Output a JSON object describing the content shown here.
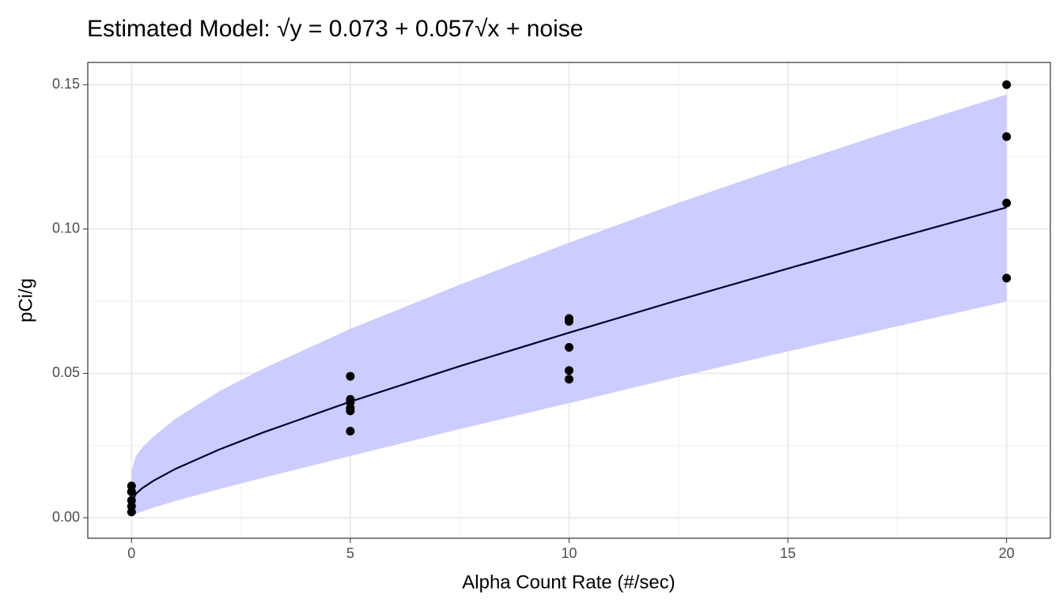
{
  "chart_data": {
    "type": "scatter",
    "title": "Estimated Model: √y = 0.073 + 0.057√x + noise",
    "x_label": "Alpha Count Rate (#/sec)",
    "y_label": "pCi/g",
    "xlim": [
      -1,
      21
    ],
    "ylim": [
      -0.0071,
      0.1577
    ],
    "xticks": [
      0,
      5,
      10,
      15,
      20
    ],
    "yticks": [
      {
        "value": 0,
        "label": "0.00"
      },
      {
        "value": 0.05,
        "label": "0.05"
      },
      {
        "value": 0.1,
        "label": "0.10"
      },
      {
        "value": 0.15,
        "label": "0.15"
      }
    ],
    "x_minor_grid": [
      2.5,
      7.5,
      12.5,
      17.5
    ],
    "y_minor_grid": [
      0.025,
      0.075,
      0.125
    ],
    "grid": true,
    "series": [
      {
        "name": "observed",
        "color": "#000000",
        "x": [
          0,
          0,
          0,
          0,
          0,
          0,
          5,
          5,
          5,
          5,
          5,
          5,
          10,
          10,
          10,
          10,
          10,
          20,
          20,
          20,
          20
        ],
        "values": [
          0.011,
          0.009,
          0.009,
          0.006,
          0.004,
          0.002,
          0.049,
          0.041,
          0.04,
          0.038,
          0.037,
          0.03,
          0.069,
          0.068,
          0.059,
          0.051,
          0.048,
          0.15,
          0.132,
          0.109,
          0.083
        ]
      }
    ],
    "fit": {
      "color": "#000033",
      "x": [
        0,
        0.1,
        0.25,
        0.5,
        1,
        2,
        3,
        5,
        7.5,
        10,
        12.5,
        15,
        17.5,
        20
      ],
      "values": [
        0.0053,
        0.0083,
        0.0103,
        0.0128,
        0.0169,
        0.0236,
        0.0295,
        0.0402,
        0.0525,
        0.0641,
        0.0754,
        0.0863,
        0.097,
        0.1075
      ]
    },
    "band": {
      "color": "#ccccff",
      "x": [
        0,
        0.1,
        0.25,
        0.5,
        1,
        2,
        3,
        5,
        7.5,
        10,
        12.5,
        15,
        17.5,
        20
      ],
      "lower": [
        0.0004,
        0.0014,
        0.0022,
        0.0035,
        0.0058,
        0.0099,
        0.0138,
        0.0214,
        0.0307,
        0.0397,
        0.0488,
        0.0576,
        0.0663,
        0.0749
      ],
      "upper": [
        0.0164,
        0.0213,
        0.0244,
        0.0281,
        0.0342,
        0.0438,
        0.0516,
        0.0654,
        0.0807,
        0.0953,
        0.1091,
        0.1221,
        0.1346,
        0.1466
      ]
    }
  }
}
